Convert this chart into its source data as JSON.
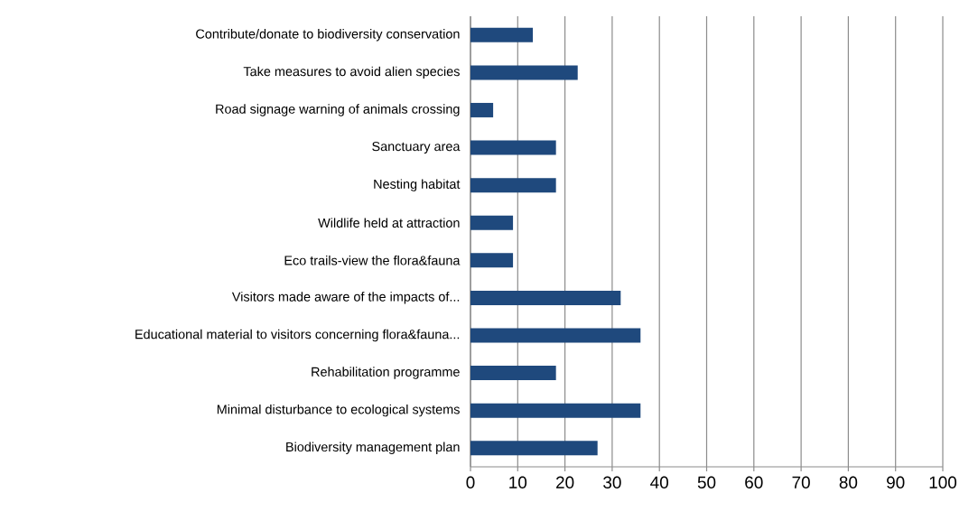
{
  "chart_data": {
    "type": "bar",
    "orientation": "horizontal",
    "categories": [
      "Contribute/donate to biodiversity conservation",
      "Take measures to avoid alien species",
      "Road signage warning of animals crossing",
      "Sanctuary area",
      "Nesting habitat",
      "Wildlife held at attraction",
      "Eco trails-view the flora&fauna",
      "Visitors made aware of the impacts of...",
      "Educational material to visitors concerning flora&fauna...",
      "Rehabilitation programme",
      "Minimal disturbance to ecological systems",
      "Biodiversity management plan"
    ],
    "values": [
      13.2,
      22.7,
      4.8,
      18.1,
      18.1,
      9.0,
      9.0,
      31.8,
      36.0,
      18.1,
      36.0,
      26.9
    ],
    "color": "#1f497d",
    "xlim": [
      0,
      100
    ],
    "xticks": [
      0,
      10,
      20,
      30,
      40,
      50,
      60,
      70,
      80,
      90,
      100
    ],
    "grid": "x"
  }
}
